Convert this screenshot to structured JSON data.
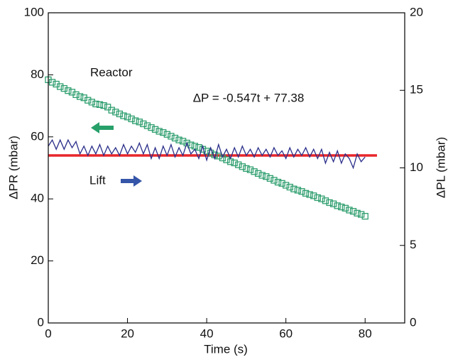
{
  "chart_data": {
    "type": "line",
    "xlabel": "Time (s)",
    "ylabel": "ΔPR (mbar)",
    "y2label": "ΔPL (mbar)",
    "xlim": [
      0,
      90
    ],
    "xticks": [
      0,
      20,
      40,
      60,
      80
    ],
    "ylim": [
      0,
      100
    ],
    "yticks": [
      0,
      20,
      40,
      60,
      80,
      100
    ],
    "y2lim": [
      0,
      20
    ],
    "y2ticks": [
      0,
      5,
      10,
      15,
      20
    ],
    "x": [
      0,
      1,
      2,
      3,
      4,
      5,
      6,
      7,
      8,
      9,
      10,
      11,
      12,
      13,
      14,
      15,
      16,
      17,
      18,
      19,
      20,
      21,
      22,
      23,
      24,
      25,
      26,
      27,
      28,
      29,
      30,
      31,
      32,
      33,
      34,
      35,
      36,
      37,
      38,
      39,
      40,
      41,
      42,
      43,
      44,
      45,
      46,
      47,
      48,
      49,
      50,
      51,
      52,
      53,
      54,
      55,
      56,
      57,
      58,
      59,
      60,
      61,
      62,
      63,
      64,
      65,
      66,
      67,
      68,
      69,
      70,
      71,
      72,
      73,
      74,
      75,
      76,
      77,
      78,
      79,
      80
    ],
    "series": [
      {
        "name": "Reactor",
        "color": "#2e9e6e",
        "marker": "square",
        "values": [
          78.4,
          77.6,
          77.0,
          76.2,
          75.6,
          74.9,
          74.4,
          73.6,
          73.0,
          72.6,
          71.8,
          71.2,
          70.6,
          70.4,
          70.1,
          69.6,
          68.6,
          68.0,
          67.4,
          66.8,
          66.4,
          65.8,
          65.2,
          64.8,
          64.2,
          63.6,
          63.0,
          62.4,
          61.8,
          61.4,
          60.8,
          60.2,
          59.6,
          59.0,
          58.6,
          58.0,
          57.4,
          57.0,
          56.6,
          56.0,
          55.4,
          54.8,
          54.2,
          53.8,
          53.2,
          52.6,
          52.0,
          51.6,
          51.0,
          50.4,
          49.8,
          49.4,
          48.8,
          48.2,
          47.6,
          47.2,
          46.6,
          46.0,
          45.4,
          45.0,
          44.4,
          43.8,
          43.2,
          42.8,
          42.4,
          41.8,
          41.4,
          41.0,
          40.4,
          40.0,
          39.4,
          38.8,
          38.4,
          37.8,
          37.4,
          37.0,
          36.4,
          36.0,
          35.4,
          35.0,
          34.4
        ]
      },
      {
        "name": "Lift",
        "color": "#2b2f8a",
        "axis": "y2",
        "values": [
          11.4,
          11.8,
          11.2,
          11.8,
          11.2,
          11.8,
          11.3,
          11.7,
          10.9,
          11.4,
          10.8,
          11.4,
          10.9,
          11.5,
          10.8,
          11.4,
          10.9,
          11.3,
          10.8,
          11.5,
          10.9,
          11.4,
          11.0,
          11.6,
          10.9,
          11.5,
          10.6,
          11.3,
          10.6,
          11.4,
          10.8,
          11.5,
          10.7,
          11.3,
          10.8,
          11.6,
          10.9,
          11.2,
          10.6,
          11.4,
          10.5,
          11.3,
          10.6,
          11.5,
          10.7,
          11.2,
          10.6,
          11.3,
          10.7,
          11.4,
          10.8,
          11.2,
          10.7,
          11.3,
          10.8,
          11.2,
          10.7,
          11.3,
          10.8,
          11.1,
          10.6,
          11.3,
          10.7,
          11.2,
          10.8,
          11.3,
          10.7,
          11.2,
          10.6,
          11.2,
          10.3,
          11.0,
          10.4,
          11.1,
          10.3,
          10.9,
          10.6,
          10.0,
          10.9,
          10.4,
          10.7
        ]
      }
    ],
    "hline": {
      "y": 54,
      "x": [
        0,
        83
      ],
      "color": "#e8262a"
    },
    "annotation": "ΔP = -0.547t + 77.38"
  }
}
